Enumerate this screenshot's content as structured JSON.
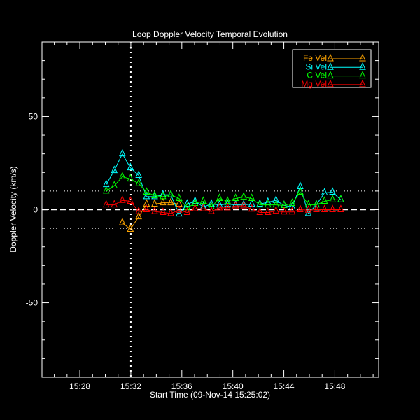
{
  "chart_data": {
    "type": "line",
    "title": "Loop Doppler Velocity Temporal Evolution",
    "xlabel": "Start Time (09-Nov-14 15:25:02)",
    "ylabel": "Doppler Velocity (km/s)",
    "xlim": [
      "15:25:02",
      "15:51:26"
    ],
    "ylim": [
      -90,
      90
    ],
    "x_ticks": [
      "15:28",
      "15:32",
      "15:36",
      "15:40",
      "15:44",
      "15:48"
    ],
    "y_ticks": [
      -50,
      0,
      50
    ],
    "legend_placement": "top-right",
    "reference_lines": {
      "horizontal_dashed": 0,
      "horizontal_dotted": [
        10,
        -10
      ],
      "vertical_dotted": "15:32"
    },
    "x": [
      "15:30:04",
      "15:30:42",
      "15:31:20",
      "15:31:58",
      "15:32:37",
      "15:33:14",
      "15:33:52",
      "15:34:31",
      "15:35:08",
      "15:35:47",
      "15:36:25",
      "15:37:02",
      "15:37:41",
      "15:38:19",
      "15:38:57",
      "15:39:35",
      "15:40:13",
      "15:40:51",
      "15:41:29",
      "15:42:07",
      "15:42:45",
      "15:43:23",
      "15:44:01",
      "15:44:39",
      "15:45:17",
      "15:45:55",
      "15:46:33",
      "15:47:11",
      "15:47:49",
      "15:48:28"
    ],
    "series": [
      {
        "name": "Fe Vel",
        "color": "#ffa500",
        "values": [
          null,
          null,
          -7,
          -10.5,
          -3.8,
          3,
          3,
          3.7,
          3.7,
          3,
          null,
          null,
          null,
          null,
          null,
          null,
          null,
          null,
          null,
          null,
          null,
          null,
          null,
          null,
          null,
          null,
          null,
          null,
          null,
          null
        ]
      },
      {
        "name": "Si Vel",
        "color": "#00ffff",
        "values": [
          13.5,
          21,
          30,
          22.5,
          18.4,
          7,
          7,
          8,
          8,
          -2.3,
          3,
          4.5,
          1.5,
          3,
          2.6,
          3,
          2.6,
          2.6,
          3,
          3,
          4,
          5,
          2.3,
          1.5,
          12.4,
          -2,
          2.6,
          9,
          9.4,
          5.3
        ]
      },
      {
        "name": "C Vel",
        "color": "#00ff00",
        "values": [
          10,
          12.8,
          17.7,
          16.5,
          14,
          9.4,
          7.5,
          7,
          8,
          6,
          1.1,
          3.4,
          4.5,
          1.5,
          6,
          4.5,
          6,
          6.8,
          6,
          2.6,
          2.6,
          2.6,
          2.3,
          3.4,
          9.4,
          2.6,
          2.6,
          4.5,
          5.3,
          5.3
        ]
      },
      {
        "name": "Mg Vel",
        "color": "#ff0000",
        "values": [
          2.6,
          2.6,
          5,
          4.5,
          -1,
          0,
          -1,
          -1.5,
          -2,
          -0.3,
          -1.5,
          0.5,
          0.5,
          -1,
          1,
          1,
          2,
          2,
          0.3,
          -1.5,
          -1.5,
          -0.7,
          -1.2,
          -1.2,
          0,
          -0.3,
          0,
          0,
          0,
          0
        ]
      }
    ]
  }
}
